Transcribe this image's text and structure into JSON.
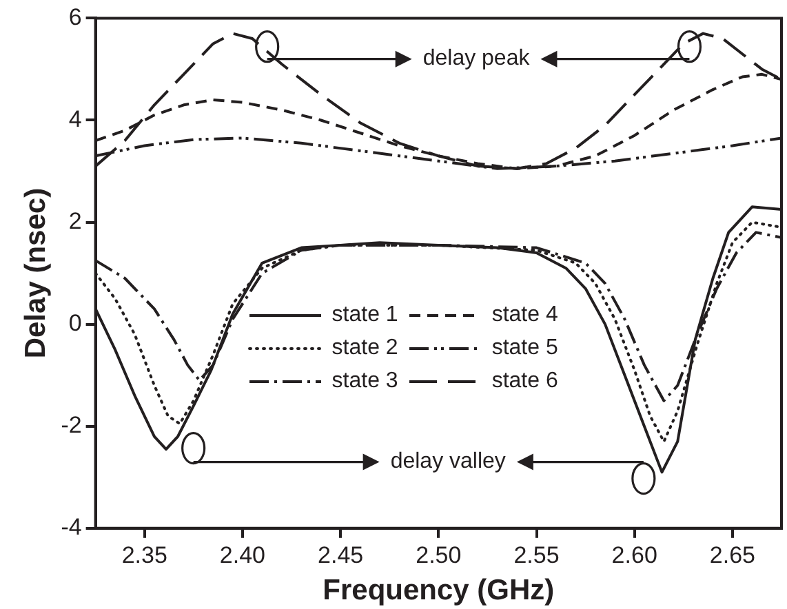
{
  "chart_data": {
    "type": "line",
    "xlabel": "Frequency (GHz)",
    "ylabel": "Delay (nsec)",
    "xlim": [
      2.325,
      2.675
    ],
    "xticks": [
      {
        "value": 2.35,
        "label": "2.35"
      },
      {
        "value": 2.4,
        "label": "2.40"
      },
      {
        "value": 2.45,
        "label": "2.45"
      },
      {
        "value": 2.5,
        "label": "2.50"
      },
      {
        "value": 2.55,
        "label": "2.55"
      },
      {
        "value": 2.6,
        "label": "2.60"
      },
      {
        "value": 2.65,
        "label": "2.65"
      }
    ],
    "ylim": [
      -4,
      6
    ],
    "yticks": [
      -4,
      -2,
      0,
      2,
      4,
      6
    ],
    "grid": false,
    "legend": "center",
    "marker": "none",
    "annotations": [
      "delay peak",
      "delay valley"
    ],
    "series": [
      {
        "name": "state 1",
        "color": "#231f20",
        "line_style": "solid",
        "x": [
          2.325,
          2.335,
          2.345,
          2.355,
          2.361,
          2.367,
          2.375,
          2.384,
          2.395,
          2.41,
          2.43,
          2.45,
          2.47,
          2.5,
          2.53,
          2.55,
          2.565,
          2.575,
          2.585,
          2.596,
          2.605,
          2.614,
          2.622,
          2.631,
          2.64,
          2.648,
          2.66,
          2.675
        ],
        "values": [
          0.3,
          -0.5,
          -1.4,
          -2.2,
          -2.45,
          -2.2,
          -1.6,
          -0.9,
          0.2,
          1.2,
          1.5,
          1.55,
          1.6,
          1.55,
          1.5,
          1.4,
          1.1,
          0.7,
          0.0,
          -1.1,
          -2.0,
          -2.9,
          -2.3,
          -0.3,
          0.9,
          1.8,
          2.3,
          2.25
        ]
      },
      {
        "name": "state 2",
        "color": "#231f20",
        "line_style": "dotted",
        "x": [
          2.325,
          2.335,
          2.345,
          2.355,
          2.362,
          2.368,
          2.375,
          2.385,
          2.395,
          2.41,
          2.43,
          2.45,
          2.5,
          2.55,
          2.57,
          2.58,
          2.59,
          2.6,
          2.608,
          2.615,
          2.622,
          2.632,
          2.642,
          2.65,
          2.66,
          2.675
        ],
        "values": [
          1.0,
          0.5,
          -0.2,
          -1.2,
          -1.8,
          -1.95,
          -1.5,
          -0.6,
          0.4,
          1.1,
          1.45,
          1.55,
          1.55,
          1.45,
          1.2,
          0.8,
          0.1,
          -0.9,
          -1.8,
          -2.3,
          -1.7,
          -0.4,
          0.8,
          1.6,
          2.0,
          1.9
        ]
      },
      {
        "name": "state 3",
        "color": "#231f20",
        "line_style": "dashdot",
        "x": [
          2.325,
          2.34,
          2.355,
          2.365,
          2.372,
          2.378,
          2.385,
          2.395,
          2.41,
          2.43,
          2.45,
          2.5,
          2.55,
          2.575,
          2.585,
          2.595,
          2.605,
          2.615,
          2.622,
          2.632,
          2.642,
          2.652,
          2.662,
          2.675
        ],
        "values": [
          1.25,
          0.9,
          0.3,
          -0.3,
          -0.8,
          -1.1,
          -0.8,
          0.1,
          1.0,
          1.45,
          1.55,
          1.55,
          1.5,
          1.2,
          0.8,
          0.1,
          -0.8,
          -1.5,
          -1.2,
          -0.2,
          0.7,
          1.4,
          1.8,
          1.7
        ]
      },
      {
        "name": "state 4",
        "color": "#231f20",
        "line_style": "dashed",
        "x": [
          2.325,
          2.34,
          2.355,
          2.37,
          2.385,
          2.4,
          2.42,
          2.44,
          2.46,
          2.48,
          2.5,
          2.52,
          2.54,
          2.56,
          2.58,
          2.6,
          2.62,
          2.64,
          2.655,
          2.665,
          2.675
        ],
        "values": [
          3.6,
          3.8,
          4.1,
          4.3,
          4.4,
          4.35,
          4.2,
          4.0,
          3.75,
          3.5,
          3.3,
          3.15,
          3.05,
          3.1,
          3.3,
          3.7,
          4.2,
          4.6,
          4.85,
          4.9,
          4.8
        ]
      },
      {
        "name": "state 5",
        "color": "#231f20",
        "line_style": "dashdotdot",
        "x": [
          2.325,
          2.35,
          2.375,
          2.4,
          2.43,
          2.46,
          2.5,
          2.53,
          2.56,
          2.59,
          2.62,
          2.65,
          2.675
        ],
        "values": [
          3.3,
          3.5,
          3.62,
          3.65,
          3.55,
          3.4,
          3.2,
          3.05,
          3.1,
          3.2,
          3.35,
          3.5,
          3.65
        ]
      },
      {
        "name": "state 6",
        "color": "#231f20",
        "line_style": "longdash",
        "x": [
          2.325,
          2.34,
          2.355,
          2.37,
          2.385,
          2.395,
          2.405,
          2.42,
          2.44,
          2.46,
          2.48,
          2.5,
          2.52,
          2.54,
          2.555,
          2.57,
          2.585,
          2.6,
          2.615,
          2.625,
          2.635,
          2.645,
          2.655,
          2.665,
          2.675
        ],
        "values": [
          3.1,
          3.6,
          4.3,
          4.9,
          5.5,
          5.7,
          5.6,
          5.1,
          4.5,
          3.95,
          3.55,
          3.3,
          3.1,
          3.05,
          3.15,
          3.45,
          3.9,
          4.5,
          5.1,
          5.5,
          5.7,
          5.6,
          5.3,
          5.0,
          4.8
        ]
      }
    ]
  }
}
